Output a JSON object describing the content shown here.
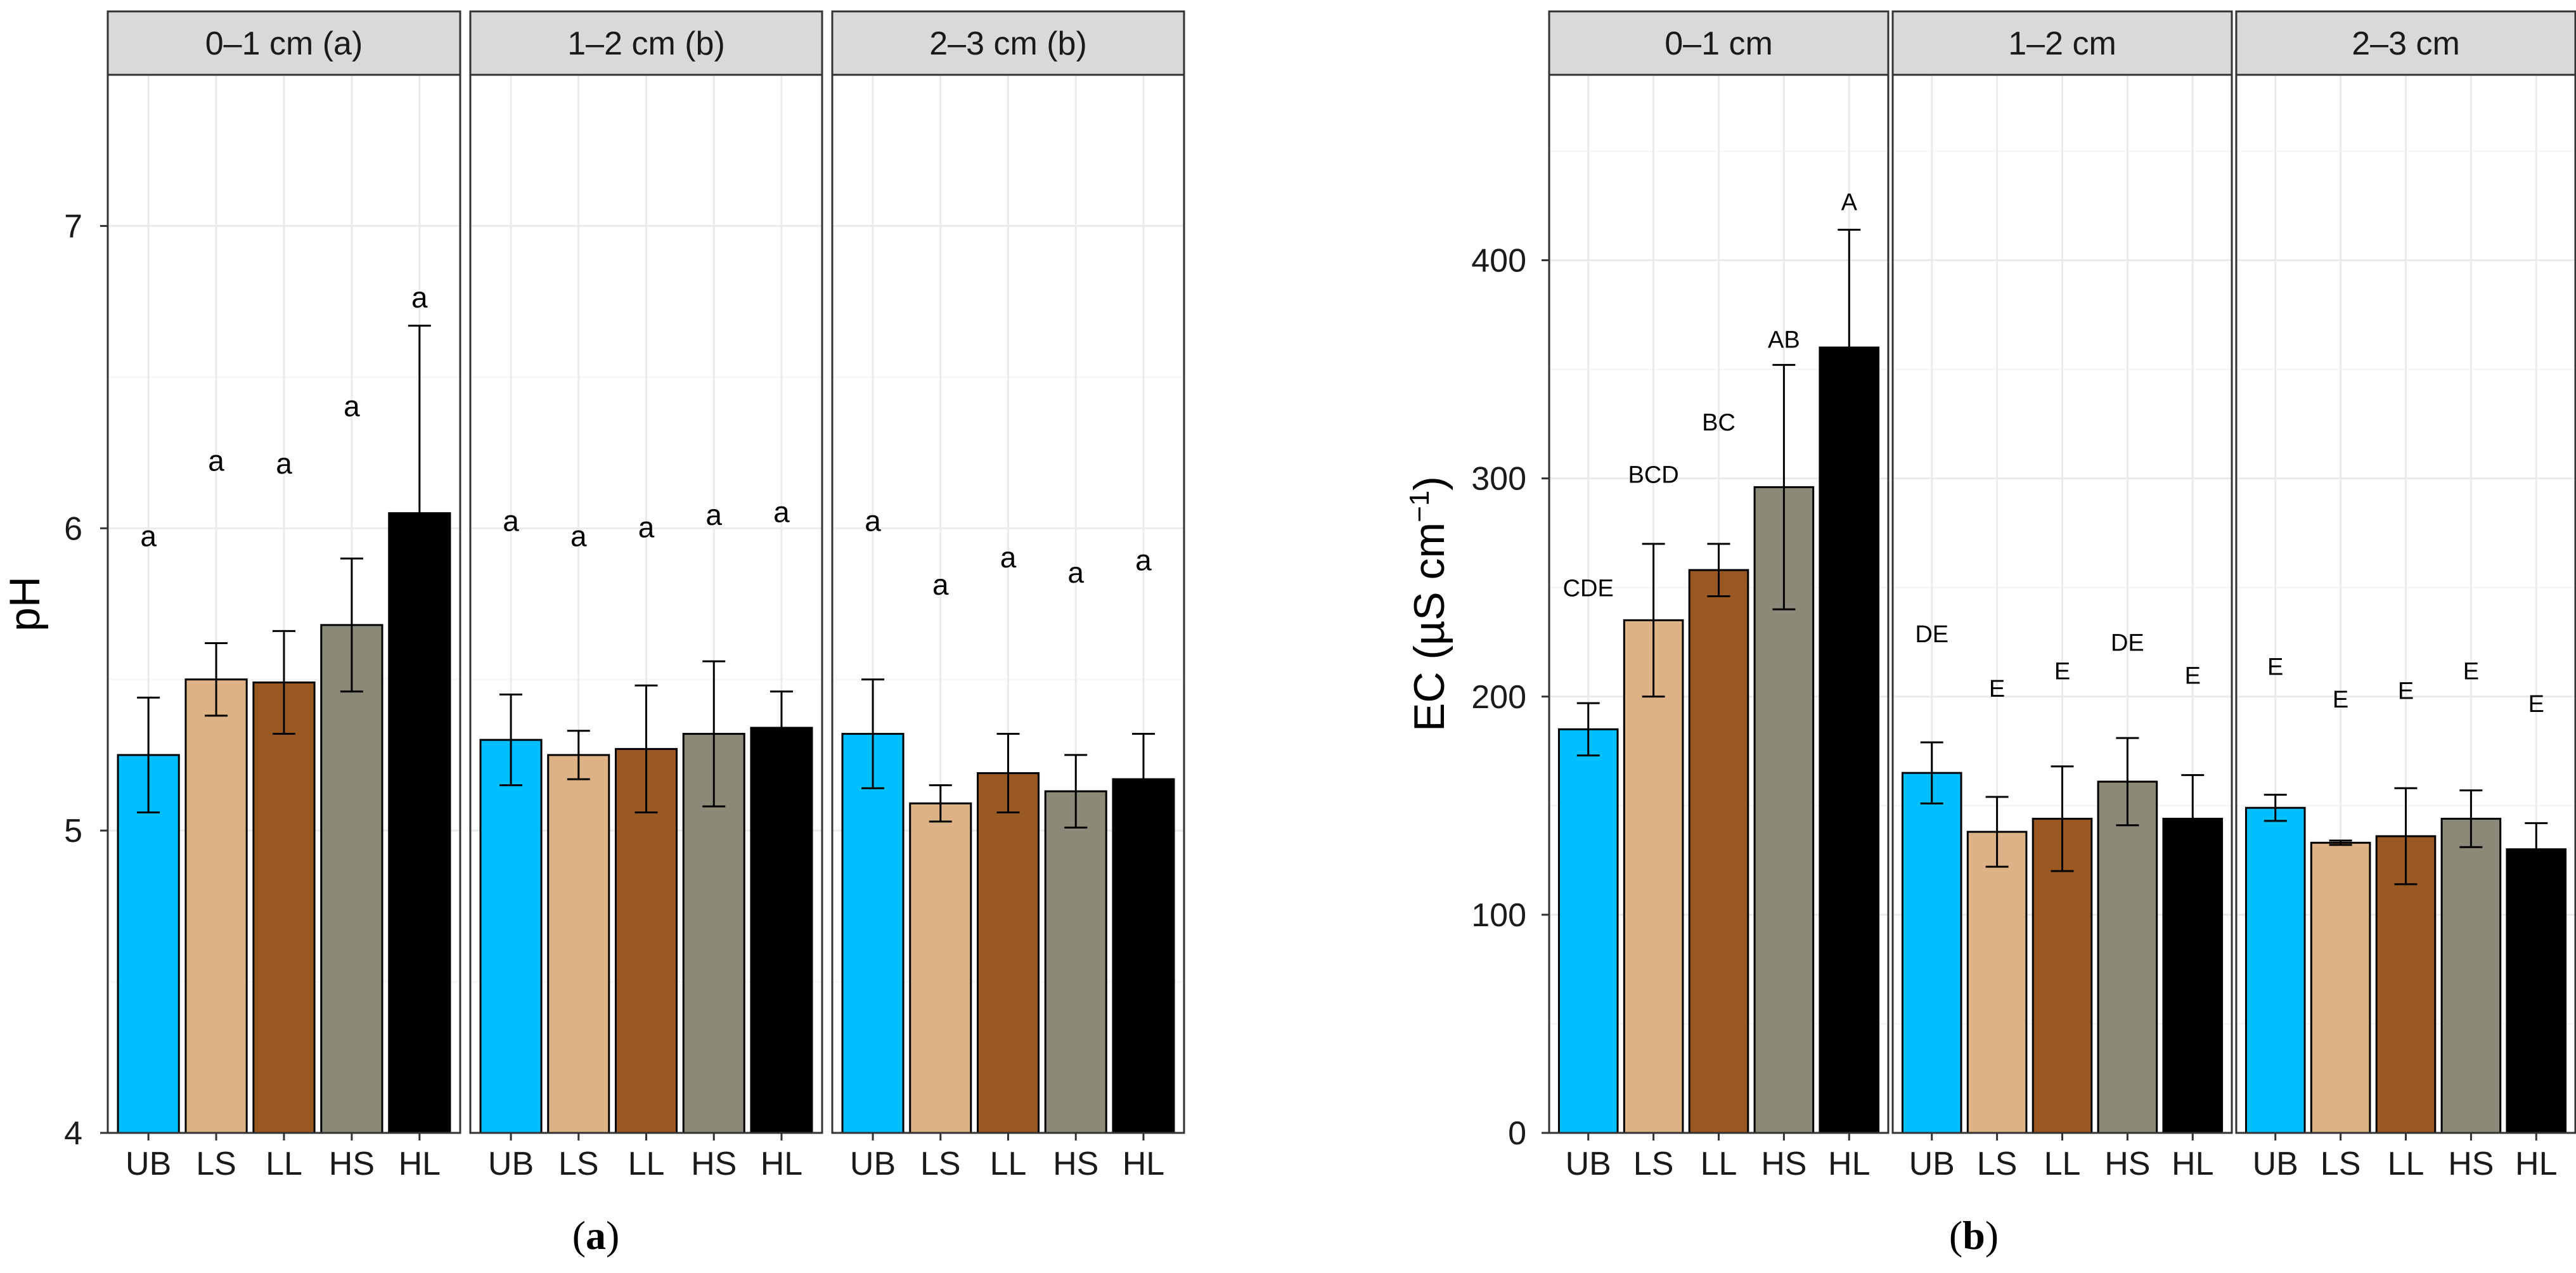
{
  "chart_data": [
    {
      "type": "bar",
      "panel_label": "a",
      "ylabel": "pH",
      "ylim": [
        4,
        7.5
      ],
      "yticks": [
        4,
        5,
        6,
        7
      ],
      "categories": [
        "UB",
        "LS",
        "LL",
        "HS",
        "HL"
      ],
      "colors": [
        "#00bfff",
        "#deb287",
        "#995722",
        "#8b8978",
        "#000000"
      ],
      "facets": [
        {
          "label": "0–1 cm (a)",
          "values": [
            5.25,
            5.5,
            5.49,
            5.68,
            6.05
          ],
          "errors": [
            0.19,
            0.12,
            0.17,
            0.22,
            0.62
          ],
          "letters": [
            "a",
            "a",
            "a",
            "a",
            "a"
          ],
          "letter_y": [
            5.97,
            6.22,
            6.21,
            6.4,
            6.76
          ]
        },
        {
          "label": "1–2 cm (b)",
          "values": [
            5.3,
            5.25,
            5.27,
            5.32,
            5.34
          ],
          "errors": [
            0.15,
            0.08,
            0.21,
            0.24,
            0.12
          ],
          "letters": [
            "a",
            "a",
            "a",
            "a",
            "a"
          ],
          "letter_y": [
            6.02,
            5.97,
            6.0,
            6.04,
            6.05
          ]
        },
        {
          "label": "2–3 cm (b)",
          "values": [
            5.32,
            5.09,
            5.19,
            5.13,
            5.17
          ],
          "errors": [
            0.18,
            0.06,
            0.13,
            0.12,
            0.15
          ],
          "letters": [
            "a",
            "a",
            "a",
            "a",
            "a"
          ],
          "letter_y": [
            6.02,
            5.81,
            5.9,
            5.85,
            5.89
          ]
        }
      ]
    },
    {
      "type": "bar",
      "panel_label": "b",
      "ylabel": "EC (µS cm",
      "ylabel_sup": "−1",
      "ylabel_close": ")",
      "ylim": [
        0,
        485
      ],
      "yticks": [
        0,
        100,
        200,
        300,
        400
      ],
      "categories": [
        "UB",
        "LS",
        "LL",
        "HS",
        "HL"
      ],
      "colors": [
        "#00bfff",
        "#deb287",
        "#995722",
        "#8b8978",
        "#000000"
      ],
      "facets": [
        {
          "label": "0–1 cm",
          "values": [
            185,
            235,
            258,
            296,
            360
          ],
          "errors": [
            12,
            35,
            12,
            56,
            54
          ],
          "letters": [
            "CDE",
            "BCD",
            "BC",
            "AB",
            "A"
          ],
          "letter_y": [
            250,
            302,
            326,
            364,
            427
          ]
        },
        {
          "label": "1–2 cm",
          "values": [
            165,
            138,
            144,
            161,
            144
          ],
          "errors": [
            14,
            16,
            24,
            20,
            20
          ],
          "letters": [
            "DE",
            "E",
            "E",
            "DE",
            "E"
          ],
          "letter_y": [
            229,
            204,
            212,
            225,
            210
          ]
        },
        {
          "label": "2–3 cm",
          "values": [
            149,
            133,
            136,
            144,
            130
          ],
          "errors": [
            6,
            1,
            22,
            13,
            12
          ],
          "letters": [
            "E",
            "E",
            "E",
            "E",
            "E"
          ],
          "letter_y": [
            214,
            199,
            203,
            212,
            197
          ]
        }
      ]
    }
  ]
}
